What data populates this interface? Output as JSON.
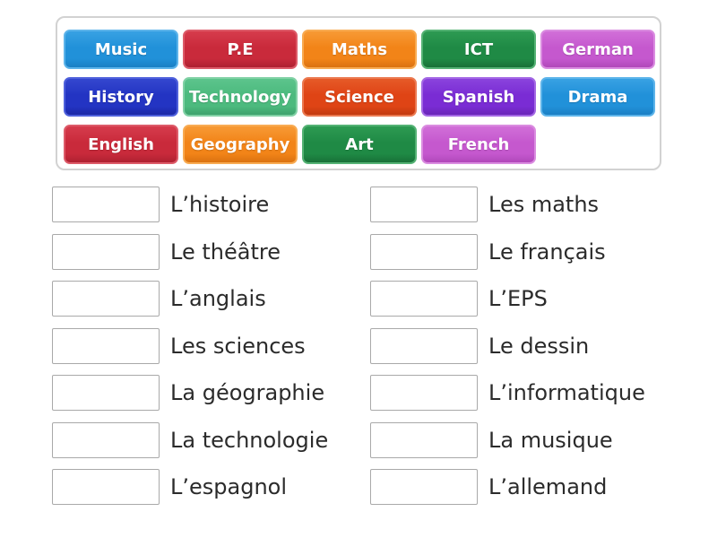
{
  "tray": {
    "tiles": [
      {
        "label": "Music",
        "color": "blue"
      },
      {
        "label": "P.E",
        "color": "red"
      },
      {
        "label": "Maths",
        "color": "orange"
      },
      {
        "label": "ICT",
        "color": "green"
      },
      {
        "label": "German",
        "color": "orchid"
      },
      {
        "label": "History",
        "color": "royal_blue"
      },
      {
        "label": "Technology",
        "color": "sea_green"
      },
      {
        "label": "Science",
        "color": "orange_red"
      },
      {
        "label": "Spanish",
        "color": "purple"
      },
      {
        "label": "Drama",
        "color": "blue"
      },
      {
        "label": "English",
        "color": "red"
      },
      {
        "label": "Geography",
        "color": "orange"
      },
      {
        "label": "Art",
        "color": "green"
      },
      {
        "label": "French",
        "color": "orchid"
      }
    ]
  },
  "palette": {
    "blue": {
      "border": "#5db4ea",
      "top": "#38a1e3",
      "base": "#2191d9",
      "bottom": "#1b7fc4"
    },
    "red": {
      "border": "#dd5b69",
      "top": "#d63c4c",
      "base": "#c92a3b",
      "bottom": "#ae2131"
    },
    "orange": {
      "border": "#f8ab52",
      "top": "#f79a35",
      "base": "#f28418",
      "bottom": "#da7210"
    },
    "green": {
      "border": "#54b274",
      "top": "#2d9a52",
      "base": "#1f8a45",
      "bottom": "#187138"
    },
    "orchid": {
      "border": "#da8ce0",
      "top": "#d16fd8",
      "base": "#c558ce",
      "bottom": "#b148ba"
    },
    "royal_blue": {
      "border": "#4f61dc",
      "top": "#3447cf",
      "base": "#2334c3",
      "bottom": "#1c29a6"
    },
    "sea_green": {
      "border": "#81d1a5",
      "top": "#5cc48c",
      "base": "#4cba7e",
      "bottom": "#3ea26d"
    },
    "orange_red": {
      "border": "#eb7950",
      "top": "#e65a28",
      "base": "#df4415",
      "bottom": "#c23a10"
    },
    "purple": {
      "border": "#a367e4",
      "top": "#8a43dd",
      "base": "#7a2cd4",
      "bottom": "#6a26b8"
    }
  },
  "match_items": {
    "left": [
      "L’histoire",
      "Le théâtre",
      "L’anglais",
      "Les sciences",
      "La géographie",
      "La technologie",
      "L’espagnol"
    ],
    "right": [
      "Les maths",
      "Le français",
      "L’EPS",
      "Le dessin",
      "L’informatique",
      "La musique",
      "L’allemand"
    ]
  }
}
